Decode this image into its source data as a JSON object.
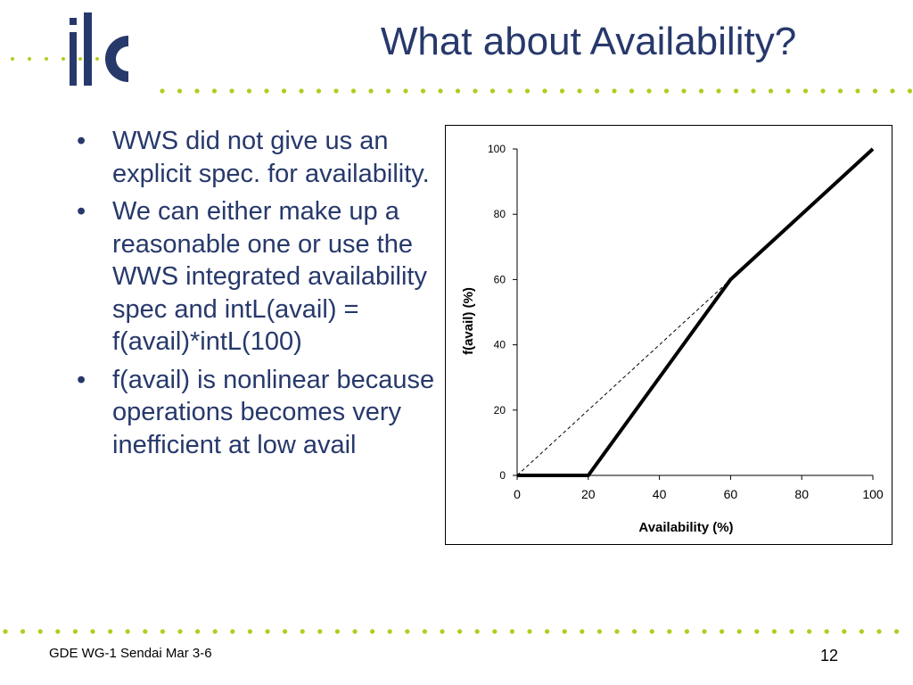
{
  "slide": {
    "title": "What about Availability?",
    "bullets": [
      "WWS did not give us an explicit spec. for availability.",
      "We can either make up a reasonable one or use the WWS integrated availability spec and   intL(avail) = f(avail)*intL(100)",
      "f(avail) is nonlinear because operations becomes very inefficient at low avail"
    ],
    "footer": "GDE WG-1 Sendai Mar 3-6",
    "page_number": "12"
  },
  "logo": {
    "text": "ilc",
    "color": "#27396b",
    "accent_color": "#b3cc1e",
    "icon": "ilc-logo-icon"
  },
  "colors": {
    "title": "#27396b",
    "dots": "#b3cc1e"
  },
  "chart_data": {
    "type": "line",
    "xlabel": "Availability (%)",
    "ylabel": "f(avail) (%)",
    "xlim": [
      0,
      100
    ],
    "ylim": [
      0,
      100
    ],
    "xticks": [
      0,
      20,
      40,
      60,
      80,
      100
    ],
    "yticks": [
      0,
      20,
      40,
      60,
      80,
      100
    ],
    "grid": false,
    "legend": "none",
    "series": [
      {
        "style": "solid-thick",
        "x": [
          0,
          20,
          60,
          100
        ],
        "y": [
          0,
          0,
          60,
          100
        ]
      },
      {
        "style": "dashed-thin",
        "x": [
          0,
          60
        ],
        "y": [
          0,
          60
        ]
      }
    ]
  }
}
